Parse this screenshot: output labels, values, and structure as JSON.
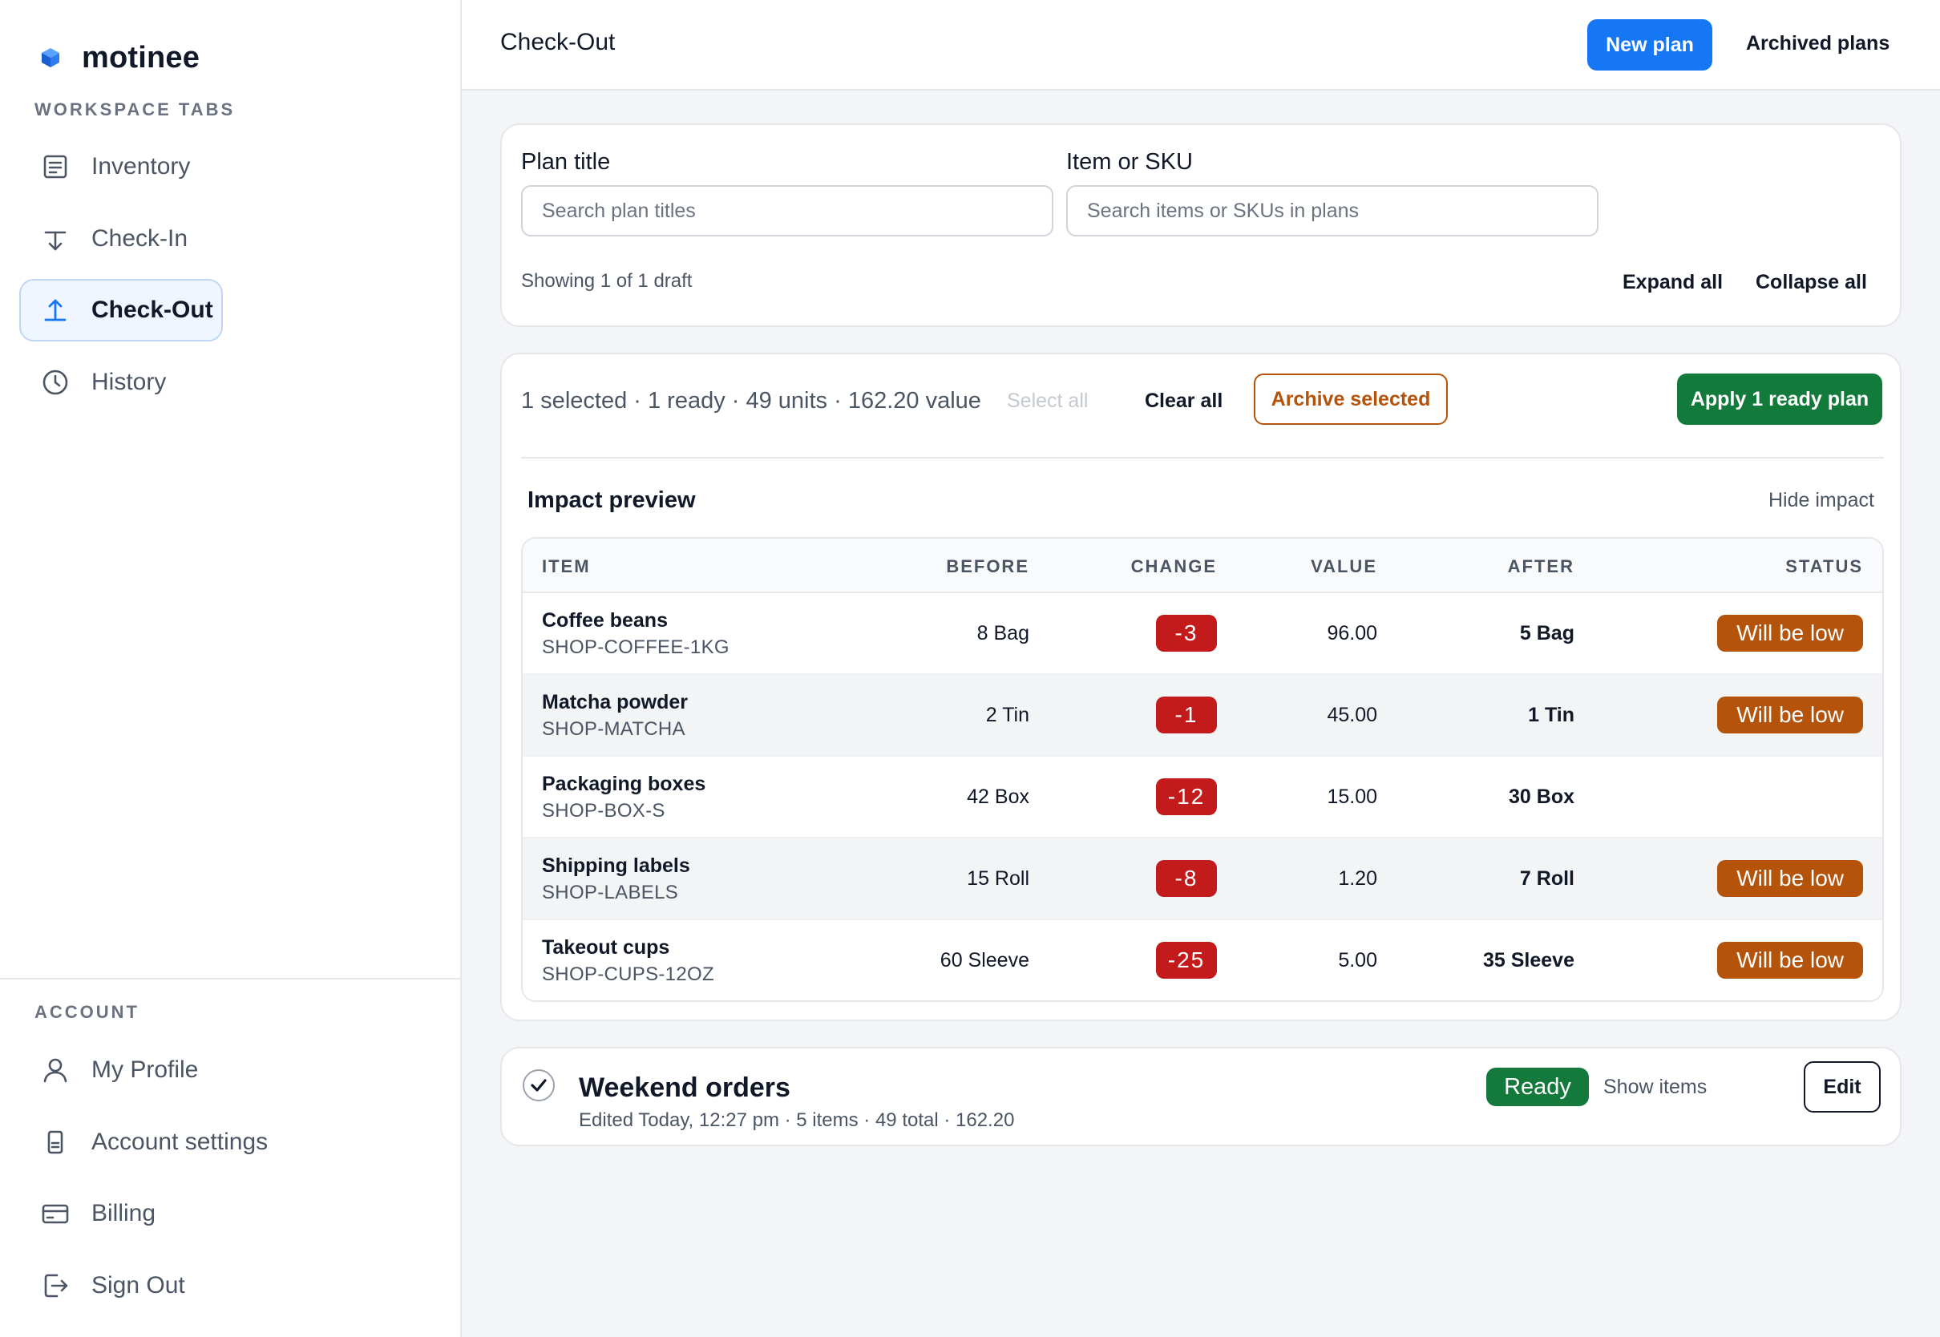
{
  "app": {
    "brand_name": "motinee",
    "brand_color": "#1677f5"
  },
  "sidebar": {
    "workspace_label": "WORKSPACE TABS",
    "workspace_items": [
      {
        "label": "Inventory",
        "icon": "document-list-icon"
      },
      {
        "label": "Check-In",
        "icon": "arrow-down-line-icon"
      },
      {
        "label": "Check-Out",
        "icon": "arrow-up-line-icon",
        "active": true
      },
      {
        "label": "History",
        "icon": "clock-icon"
      }
    ],
    "account_label": "ACCOUNT",
    "account_items": [
      {
        "label": "My Profile",
        "icon": "user-icon"
      },
      {
        "label": "Account settings",
        "icon": "settings-icon"
      },
      {
        "label": "Billing",
        "icon": "credit-card-icon"
      },
      {
        "label": "Sign Out",
        "icon": "sign-out-icon"
      }
    ]
  },
  "header": {
    "title": "Check-Out",
    "new_plan_label": "New plan",
    "archived_plans_label": "Archived plans"
  },
  "filters": {
    "plan_title_label": "Plan title",
    "plan_title_placeholder": "Search plan titles",
    "item_sku_label": "Item or SKU",
    "item_sku_placeholder": "Search items or SKUs in plans",
    "showing_text": "Showing 1 of 1 draft",
    "expand_all_label": "Expand all",
    "collapse_all_label": "Collapse all"
  },
  "selection": {
    "summary": "1 selected · 1 ready · 49 units · 162.20 value",
    "select_all_label": "Select all",
    "clear_all_label": "Clear all",
    "archive_selected_label": "Archive selected",
    "apply_label": "Apply 1 ready plan"
  },
  "impact": {
    "title": "Impact preview",
    "hide_label": "Hide impact",
    "columns": {
      "item": "ITEM",
      "before": "BEFORE",
      "change": "CHANGE",
      "value": "VALUE",
      "after": "AFTER",
      "status": "STATUS"
    },
    "rows": [
      {
        "name": "Coffee beans",
        "sku": "SHOP-COFFEE-1KG",
        "before": "8 Bag",
        "change": "-3",
        "value": "96.00",
        "after": "5 Bag",
        "status": "Will be low"
      },
      {
        "name": "Matcha powder",
        "sku": "SHOP-MATCHA",
        "before": "2 Tin",
        "change": "-1",
        "value": "45.00",
        "after": "1 Tin",
        "status": "Will be low"
      },
      {
        "name": "Packaging boxes",
        "sku": "SHOP-BOX-S",
        "before": "42 Box",
        "change": "-12",
        "value": "15.00",
        "after": "30 Box",
        "status": ""
      },
      {
        "name": "Shipping labels",
        "sku": "SHOP-LABELS",
        "before": "15 Roll",
        "change": "-8",
        "value": "1.20",
        "after": "7 Roll",
        "status": "Will be low"
      },
      {
        "name": "Takeout cups",
        "sku": "SHOP-CUPS-12OZ",
        "before": "60 Sleeve",
        "change": "-25",
        "value": "5.00",
        "after": "35 Sleeve",
        "status": "Will be low"
      }
    ]
  },
  "plan": {
    "name": "Weekend orders",
    "meta": "Edited Today, 12:27 pm · 5 items · 49 total · 162.20",
    "status": "Ready",
    "show_items_label": "Show items",
    "edit_label": "Edit",
    "checked": true
  }
}
